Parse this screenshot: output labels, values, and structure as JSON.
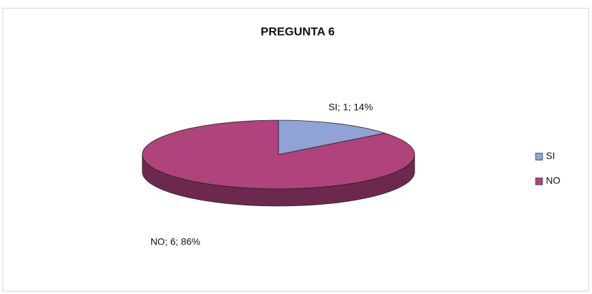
{
  "chart_data": {
    "type": "pie",
    "title": "PREGUNTA 6",
    "categories": [
      "SI",
      "NO"
    ],
    "values": [
      1,
      6
    ],
    "value_labels": [
      "SI; 1; 14%",
      "NO; 6; 86%"
    ],
    "colors": [
      "#8fa3d6",
      "#b0427c"
    ],
    "legend": "right"
  }
}
